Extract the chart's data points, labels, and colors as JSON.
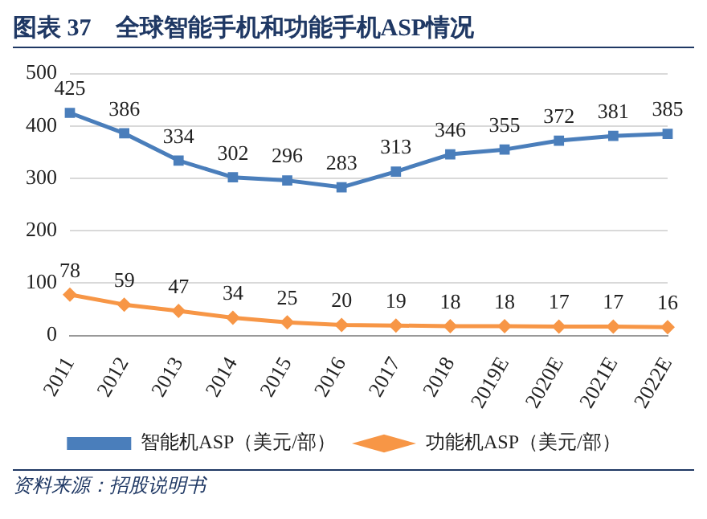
{
  "chart_data": {
    "type": "line",
    "title": "图表 37　全球智能手机和功能手机ASP情况",
    "categories": [
      "2011",
      "2012",
      "2013",
      "2014",
      "2015",
      "2016",
      "2017",
      "2018",
      "2019E",
      "2020E",
      "2021E",
      "2022E"
    ],
    "series": [
      {
        "name": "智能机ASP（美元/部）",
        "color": "#4a7ebb",
        "marker": "square",
        "values": [
          425,
          386,
          334,
          302,
          296,
          283,
          313,
          346,
          355,
          372,
          381,
          385
        ]
      },
      {
        "name": "功能机ASP（美元/部）",
        "color": "#f79646",
        "marker": "diamond",
        "values": [
          78,
          59,
          47,
          34,
          25,
          20,
          19,
          18,
          18,
          17,
          17,
          16
        ]
      }
    ],
    "ylim": [
      0,
      500
    ],
    "yticks": [
      0,
      100,
      200,
      300,
      400,
      500
    ],
    "grid": "y",
    "legend": "bottom",
    "data_labels": true,
    "line_style": "solid",
    "annotations": [
      "资料来源：招股说明书"
    ]
  }
}
